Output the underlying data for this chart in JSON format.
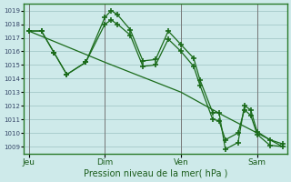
{
  "background_color": "#ceeaea",
  "grid_color": "#aacece",
  "line_color": "#1a6b1a",
  "xlabel": "Pression niveau de la mer( hPa )",
  "ylim": [
    1008.5,
    1019.5
  ],
  "yticks": [
    1009,
    1010,
    1011,
    1012,
    1013,
    1014,
    1015,
    1016,
    1017,
    1018,
    1019
  ],
  "xtick_labels": [
    "Jeu",
    "Dim",
    "Ven",
    "Sam"
  ],
  "xtick_positions": [
    0,
    48,
    96,
    144
  ],
  "xlim": [
    -3,
    163
  ],
  "vlines": [
    0,
    48,
    96,
    144
  ],
  "series1_jagged": [
    [
      0,
      1017.5
    ],
    [
      8,
      1017.5
    ],
    [
      16,
      1015.9
    ],
    [
      24,
      1014.3
    ],
    [
      36,
      1015.2
    ],
    [
      48,
      1018.5
    ],
    [
      52,
      1019.0
    ],
    [
      56,
      1018.7
    ],
    [
      64,
      1017.6
    ],
    [
      72,
      1015.3
    ],
    [
      80,
      1015.4
    ],
    [
      88,
      1017.5
    ],
    [
      96,
      1016.5
    ],
    [
      104,
      1015.5
    ],
    [
      108,
      1013.9
    ],
    [
      116,
      1011.5
    ],
    [
      120,
      1011.5
    ],
    [
      124,
      1008.8
    ],
    [
      132,
      1009.3
    ],
    [
      136,
      1012.0
    ],
    [
      140,
      1011.7
    ],
    [
      144,
      1010.1
    ],
    [
      152,
      1009.5
    ],
    [
      160,
      1009.2
    ]
  ],
  "series2_mid": [
    [
      0,
      1017.5
    ],
    [
      8,
      1017.5
    ],
    [
      16,
      1015.9
    ],
    [
      24,
      1014.3
    ],
    [
      36,
      1015.2
    ],
    [
      48,
      1018.0
    ],
    [
      52,
      1018.3
    ],
    [
      56,
      1018.0
    ],
    [
      64,
      1017.2
    ],
    [
      72,
      1014.9
    ],
    [
      80,
      1015.0
    ],
    [
      88,
      1016.9
    ],
    [
      96,
      1016.0
    ],
    [
      104,
      1014.9
    ],
    [
      108,
      1013.5
    ],
    [
      116,
      1011.0
    ],
    [
      120,
      1010.9
    ],
    [
      124,
      1009.5
    ],
    [
      132,
      1010.0
    ],
    [
      136,
      1011.7
    ],
    [
      140,
      1011.3
    ],
    [
      144,
      1009.9
    ],
    [
      152,
      1009.1
    ],
    [
      160,
      1009.0
    ]
  ],
  "series3_straight": [
    [
      0,
      1017.5
    ],
    [
      48,
      1015.2
    ],
    [
      96,
      1013.0
    ],
    [
      124,
      1011.2
    ],
    [
      144,
      1010.0
    ],
    [
      160,
      1009.0
    ]
  ]
}
